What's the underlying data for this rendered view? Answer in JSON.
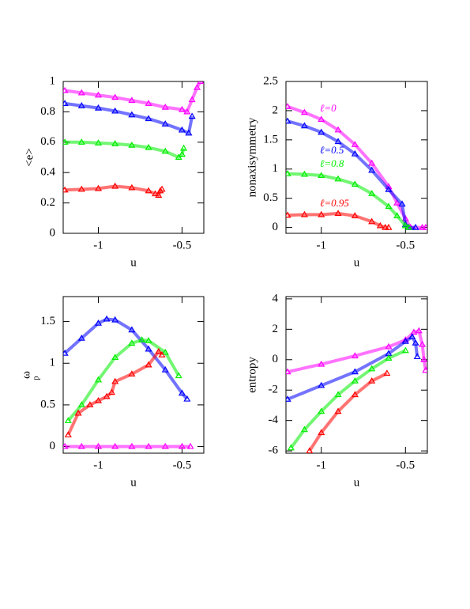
{
  "chart_data": [
    {
      "type": "line",
      "ylabel": "<e>",
      "xlabel": "u",
      "xlim": [
        -1.21,
        -0.37
      ],
      "xticks": [
        -1,
        -0.5
      ],
      "ylim": [
        0,
        1
      ],
      "yticks": [
        0,
        0.2,
        0.4,
        0.6,
        0.8,
        1
      ],
      "series": [
        {
          "color": "#ff00ff",
          "x": [
            -1.2,
            -1.1,
            -1.0,
            -0.9,
            -0.8,
            -0.7,
            -0.6,
            -0.5,
            -0.47,
            -0.44,
            -0.41,
            -0.39
          ],
          "values": [
            0.94,
            0.925,
            0.91,
            0.895,
            0.875,
            0.855,
            0.83,
            0.815,
            0.8,
            0.88,
            0.96,
            1.0
          ]
        },
        {
          "color": "#0000ff",
          "x": [
            -1.2,
            -1.1,
            -1.0,
            -0.9,
            -0.8,
            -0.7,
            -0.6,
            -0.5,
            -0.46,
            -0.44
          ],
          "values": [
            0.855,
            0.84,
            0.825,
            0.805,
            0.78,
            0.755,
            0.72,
            0.68,
            0.66,
            0.77
          ]
        },
        {
          "color": "#00ee00",
          "x": [
            -1.2,
            -1.1,
            -1.0,
            -0.9,
            -0.8,
            -0.7,
            -0.6,
            -0.52,
            -0.5,
            -0.49
          ],
          "values": [
            0.6,
            0.6,
            0.595,
            0.59,
            0.58,
            0.565,
            0.54,
            0.5,
            0.52,
            0.56
          ]
        },
        {
          "color": "#ff0000",
          "x": [
            -1.2,
            -1.1,
            -1.0,
            -0.9,
            -0.8,
            -0.7,
            -0.66,
            -0.64,
            -0.63,
            -0.62
          ],
          "values": [
            0.285,
            0.29,
            0.295,
            0.31,
            0.3,
            0.28,
            0.26,
            0.25,
            0.28,
            0.29
          ]
        }
      ]
    },
    {
      "type": "line",
      "ylabel": "nonaxisymmetry",
      "xlabel": "u",
      "xlim": [
        -1.21,
        -0.37
      ],
      "xticks": [
        -1,
        -0.5
      ],
      "ylim": [
        -0.1,
        2.5
      ],
      "yticks": [
        0,
        0.5,
        1,
        1.5,
        2,
        2.5
      ],
      "series": [
        {
          "name": "ℓ=0",
          "color": "#ff00ff",
          "x": [
            -1.2,
            -1.1,
            -1.0,
            -0.9,
            -0.8,
            -0.7,
            -0.6,
            -0.55,
            -0.5,
            -0.47,
            -0.4,
            -0.38
          ],
          "values": [
            2.07,
            1.97,
            1.85,
            1.67,
            1.42,
            1.1,
            0.7,
            0.42,
            0.15,
            0,
            0,
            0
          ]
        },
        {
          "name": "ℓ=0.5",
          "color": "#0000ff",
          "x": [
            -1.2,
            -1.1,
            -1.0,
            -0.9,
            -0.8,
            -0.7,
            -0.6,
            -0.52,
            -0.5,
            -0.48,
            -0.44
          ],
          "values": [
            1.82,
            1.74,
            1.63,
            1.47,
            1.26,
            0.98,
            0.65,
            0.4,
            0.05,
            0,
            0
          ]
        },
        {
          "name": "ℓ=0.8",
          "color": "#00ee00",
          "x": [
            -1.2,
            -1.1,
            -1.0,
            -0.9,
            -0.8,
            -0.7,
            -0.6,
            -0.55,
            -0.5,
            -0.48
          ],
          "values": [
            0.92,
            0.91,
            0.89,
            0.83,
            0.74,
            0.58,
            0.36,
            0.2,
            0.03,
            0
          ]
        },
        {
          "name": "ℓ=0.95",
          "color": "#ff0000",
          "x": [
            -1.2,
            -1.1,
            -1.0,
            -0.9,
            -0.8,
            -0.7,
            -0.65,
            -0.62,
            -0.6
          ],
          "values": [
            0.21,
            0.22,
            0.22,
            0.24,
            0.2,
            0.1,
            0.03,
            0,
            0
          ]
        }
      ]
    },
    {
      "type": "line",
      "ylabel": "ω",
      "ylabel_sub": "p",
      "xlabel": "u",
      "xlim": [
        -1.21,
        -0.37
      ],
      "xticks": [
        -1,
        -0.5
      ],
      "ylim": [
        -0.08,
        1.8
      ],
      "yticks": [
        0,
        0.5,
        1,
        1.5
      ],
      "series": [
        {
          "color": "#ff00ff",
          "x": [
            -1.2,
            -1.1,
            -1.0,
            -0.9,
            -0.8,
            -0.7,
            -0.6,
            -0.5,
            -0.45
          ],
          "values": [
            0,
            0,
            0,
            0,
            0,
            0,
            0,
            0,
            0
          ]
        },
        {
          "color": "#0000ff",
          "x": [
            -1.2,
            -1.1,
            -1.0,
            -0.95,
            -0.9,
            -0.8,
            -0.7,
            -0.6,
            -0.5,
            -0.47
          ],
          "values": [
            1.12,
            1.3,
            1.48,
            1.53,
            1.52,
            1.4,
            1.17,
            0.92,
            0.64,
            0.57
          ]
        },
        {
          "color": "#00ee00",
          "x": [
            -1.18,
            -1.1,
            -1.0,
            -0.9,
            -0.8,
            -0.74,
            -0.7,
            -0.6,
            -0.52
          ],
          "values": [
            0.31,
            0.5,
            0.8,
            1.07,
            1.24,
            1.28,
            1.27,
            1.13,
            0.85
          ]
        },
        {
          "color": "#ff0000",
          "x": [
            -1.18,
            -1.12,
            -1.05,
            -1.0,
            -0.95,
            -0.92,
            -0.9,
            -0.8,
            -0.7,
            -0.64,
            -0.62
          ],
          "values": [
            0.14,
            0.4,
            0.5,
            0.55,
            0.6,
            0.65,
            0.78,
            0.87,
            0.98,
            1.14,
            1.1
          ]
        }
      ]
    },
    {
      "type": "line",
      "ylabel": "entropy",
      "xlabel": "u",
      "xlim": [
        -1.21,
        -0.37
      ],
      "xticks": [
        -1,
        -0.5
      ],
      "ylim": [
        -6.15,
        4.15
      ],
      "yticks": [
        -6,
        -4,
        -2,
        0,
        2,
        4
      ],
      "series": [
        {
          "color": "#ff00ff",
          "x": [
            -1.2,
            -1.0,
            -0.8,
            -0.6,
            -0.5,
            -0.45,
            -0.42,
            -0.4,
            -0.39,
            -0.38
          ],
          "values": [
            -0.8,
            -0.3,
            0.25,
            0.85,
            1.3,
            1.8,
            1.9,
            1.0,
            0,
            -0.7
          ]
        },
        {
          "color": "#0000ff",
          "x": [
            -1.2,
            -1.0,
            -0.8,
            -0.6,
            -0.5,
            -0.46,
            -0.44,
            -0.43
          ],
          "values": [
            -2.6,
            -1.7,
            -0.8,
            0.4,
            1.2,
            1.5,
            1.1,
            0.2
          ]
        },
        {
          "color": "#00ee00",
          "x": [
            -1.18,
            -1.1,
            -1.0,
            -0.9,
            -0.8,
            -0.7,
            -0.6,
            -0.5
          ],
          "values": [
            -5.8,
            -4.6,
            -3.4,
            -2.3,
            -1.4,
            -0.6,
            0.1,
            0.6
          ]
        },
        {
          "color": "#ff0000",
          "x": [
            -1.07,
            -1.0,
            -0.9,
            -0.8,
            -0.7,
            -0.61
          ],
          "values": [
            -6,
            -4.8,
            -3.4,
            -2.3,
            -1.4,
            -0.9
          ]
        }
      ]
    }
  ]
}
